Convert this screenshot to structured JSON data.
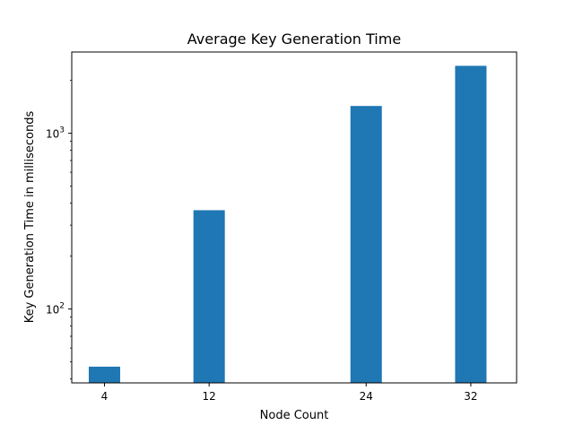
{
  "chart_data": {
    "type": "bar",
    "title": "Average Key Generation Time",
    "xlabel": "Node Count",
    "ylabel": "Key Generation Time in milliseconds",
    "x": [
      4,
      12,
      24,
      32
    ],
    "x_tick_labels": [
      "4",
      "12",
      "24",
      "32"
    ],
    "values": [
      47,
      365,
      1430,
      2420
    ],
    "yscale": "log",
    "ylim": [
      38,
      2900
    ],
    "xlim": [
      1.5,
      35.5
    ],
    "y_major_ticks": [
      {
        "value": 100,
        "base": "10",
        "exp": "2"
      },
      {
        "value": 1000,
        "base": "10",
        "exp": "3"
      }
    ],
    "grid": false,
    "bar_color": "#1f77b4"
  }
}
